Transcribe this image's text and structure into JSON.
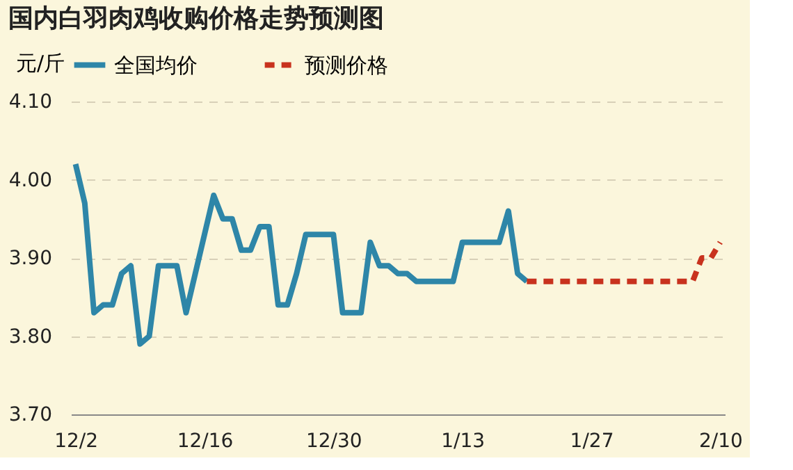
{
  "chart_data": {
    "type": "line",
    "title": "国内白羽肉鸡收购价格走势预测图",
    "ylabel": "元/斤",
    "categories": [
      "12/2",
      null,
      null,
      null,
      null,
      null,
      null,
      null,
      null,
      null,
      null,
      null,
      null,
      null,
      "12/16",
      null,
      null,
      null,
      null,
      null,
      null,
      null,
      null,
      null,
      null,
      null,
      null,
      null,
      "12/30",
      null,
      null,
      null,
      null,
      null,
      null,
      null,
      null,
      null,
      null,
      null,
      null,
      null,
      "1/13",
      null,
      null,
      null,
      null,
      null,
      null,
      null,
      null,
      null,
      null,
      null,
      null,
      null,
      "1/27",
      null,
      null,
      null,
      null,
      null,
      null,
      null,
      null,
      null,
      null,
      null,
      null,
      null,
      "2/10"
    ],
    "series": [
      {
        "name": "全国均价",
        "color": "#2e86a8",
        "line_style": "solid",
        "values": [
          4.02,
          3.97,
          3.83,
          3.84,
          3.84,
          3.88,
          3.89,
          3.79,
          3.8,
          3.89,
          3.89,
          3.89,
          3.83,
          3.88,
          3.93,
          3.98,
          3.95,
          3.95,
          3.91,
          3.91,
          3.94,
          3.94,
          3.84,
          3.84,
          3.88,
          3.93,
          3.93,
          3.93,
          3.93,
          3.83,
          3.83,
          3.83,
          3.92,
          3.89,
          3.89,
          3.88,
          3.88,
          3.87,
          3.87,
          3.87,
          3.87,
          3.87,
          3.92,
          3.92,
          3.92,
          3.92,
          3.92,
          3.96,
          3.88,
          3.87,
          null,
          null,
          null,
          null,
          null,
          null,
          null,
          null,
          null,
          null,
          null,
          null,
          null,
          null,
          null,
          null,
          null,
          null,
          null,
          null,
          null
        ]
      },
      {
        "name": "预测价格",
        "color": "#c8321e",
        "line_style": "dashed",
        "values": [
          null,
          null,
          null,
          null,
          null,
          null,
          null,
          null,
          null,
          null,
          null,
          null,
          null,
          null,
          null,
          null,
          null,
          null,
          null,
          null,
          null,
          null,
          null,
          null,
          null,
          null,
          null,
          null,
          null,
          null,
          null,
          null,
          null,
          null,
          null,
          null,
          null,
          null,
          null,
          null,
          null,
          null,
          null,
          null,
          null,
          null,
          null,
          null,
          null,
          3.87,
          3.87,
          3.87,
          3.87,
          3.87,
          3.87,
          3.87,
          3.87,
          3.87,
          3.87,
          3.87,
          3.87,
          3.87,
          3.87,
          3.87,
          3.87,
          3.87,
          3.87,
          3.87,
          3.9,
          3.9,
          3.92
        ]
      }
    ],
    "ylim": [
      3.7,
      4.1
    ],
    "yticks": [
      {
        "value": 3.7,
        "label": "3.70"
      },
      {
        "value": 3.8,
        "label": "3.80"
      },
      {
        "value": 3.9,
        "label": "3.90"
      },
      {
        "value": 4.0,
        "label": "4.00"
      },
      {
        "value": 4.1,
        "label": "4.10"
      }
    ],
    "grid": "y",
    "legend": "top",
    "marker": "none"
  }
}
